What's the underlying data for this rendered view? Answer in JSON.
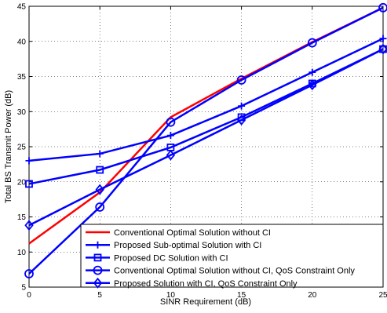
{
  "chart_data": {
    "type": "line",
    "title": "",
    "xlabel": "SINR Requirement (dB)",
    "ylabel": "Total BS Transmit Power (dB)",
    "xlim": [
      0,
      25
    ],
    "ylim": [
      5,
      45
    ],
    "xticks": [
      0,
      5,
      10,
      15,
      20,
      25
    ],
    "yticks": [
      5,
      10,
      15,
      20,
      25,
      30,
      35,
      40,
      45
    ],
    "grid": true,
    "legend_position": "bottom-right",
    "x": [
      0,
      5,
      10,
      15,
      20,
      25
    ],
    "series": [
      {
        "name": "Conventional Optimal Solution without CI",
        "values": [
          11.2,
          18.5,
          29.2,
          34.7,
          39.9,
          44.8
        ],
        "color": "#ff0000",
        "marker": "none"
      },
      {
        "name": "Proposed Sub-optimal Solution with CI",
        "values": [
          23.0,
          24.0,
          26.6,
          30.8,
          35.6,
          40.4
        ],
        "color": "#0000ff",
        "marker": "plus"
      },
      {
        "name": "Proposed DC Solution with CI",
        "values": [
          19.7,
          21.7,
          24.9,
          29.2,
          34.0,
          38.9
        ],
        "color": "#0000ff",
        "marker": "square"
      },
      {
        "name": "Conventional Optimal Solution without CI, QoS Constraint Only",
        "values": [
          6.9,
          16.4,
          28.5,
          34.5,
          39.8,
          44.8
        ],
        "color": "#0000ff",
        "marker": "circle"
      },
      {
        "name": "Proposed Solution with CI, QoS Constraint Only",
        "values": [
          13.8,
          18.9,
          23.8,
          28.8,
          33.8,
          38.9
        ],
        "color": "#0000ff",
        "marker": "diamond"
      }
    ]
  }
}
